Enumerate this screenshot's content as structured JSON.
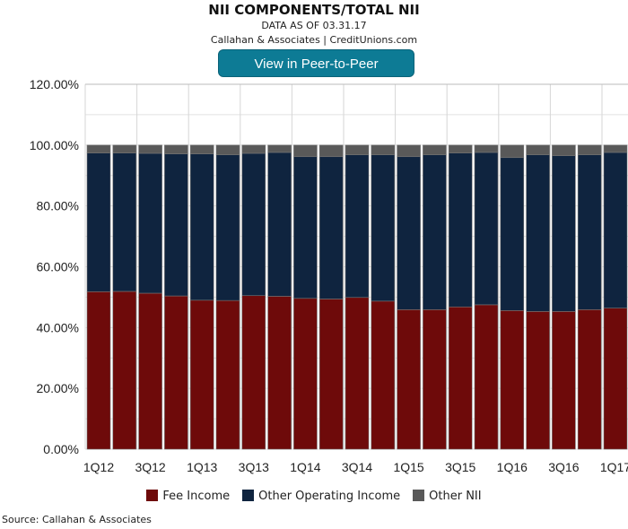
{
  "title": "NII COMPONENTS/TOTAL NII",
  "subtitle1": "DATA AS OF 03.31.17",
  "subtitle2": "Callahan & Associates | CreditUnions.com",
  "button_label": "View in Peer-to-Peer",
  "source": "Source: Callahan & Associates",
  "chart_data": {
    "type": "bar",
    "stacked": true,
    "title": "NII COMPONENTS/TOTAL NII",
    "categories": [
      "1Q12",
      "2Q12",
      "3Q12",
      "4Q12",
      "1Q13",
      "2Q13",
      "3Q13",
      "4Q13",
      "1Q14",
      "2Q14",
      "3Q14",
      "4Q14",
      "1Q15",
      "2Q15",
      "3Q15",
      "4Q15",
      "1Q16",
      "2Q16",
      "3Q16",
      "4Q16",
      "1Q17"
    ],
    "x_tick_labels": [
      "1Q12",
      "3Q12",
      "1Q13",
      "3Q13",
      "1Q14",
      "3Q14",
      "1Q15",
      "3Q15",
      "1Q16",
      "3Q16",
      "1Q17"
    ],
    "y_tick_labels": [
      "0.00%",
      "20.00%",
      "40.00%",
      "60.00%",
      "80.00%",
      "100.00%",
      "120.00%"
    ],
    "ylim": [
      0,
      120
    ],
    "grid": true,
    "legend": "bottom",
    "series": [
      {
        "name": "Fee Income",
        "color": "#6e0a0a",
        "values": [
          51.8,
          51.9,
          51.3,
          50.4,
          49.0,
          48.9,
          50.5,
          50.3,
          49.6,
          49.4,
          49.9,
          48.7,
          45.9,
          45.9,
          46.8,
          47.5,
          45.6,
          45.3,
          45.3,
          45.9,
          46.4
        ]
      },
      {
        "name": "Other Operating Income",
        "color": "#0f243f",
        "values": [
          45.6,
          45.5,
          46.0,
          46.7,
          48.1,
          47.9,
          46.8,
          47.3,
          46.6,
          46.8,
          46.9,
          48.1,
          50.3,
          50.9,
          50.6,
          50.1,
          50.3,
          51.5,
          51.2,
          50.9,
          51.2
        ]
      },
      {
        "name": "Other NII",
        "color": "#595959",
        "values": [
          2.6,
          2.6,
          2.7,
          2.9,
          2.9,
          3.2,
          2.7,
          2.4,
          3.8,
          3.8,
          3.2,
          3.2,
          3.8,
          3.2,
          2.6,
          2.4,
          4.1,
          3.2,
          3.5,
          3.2,
          2.4
        ]
      }
    ]
  }
}
